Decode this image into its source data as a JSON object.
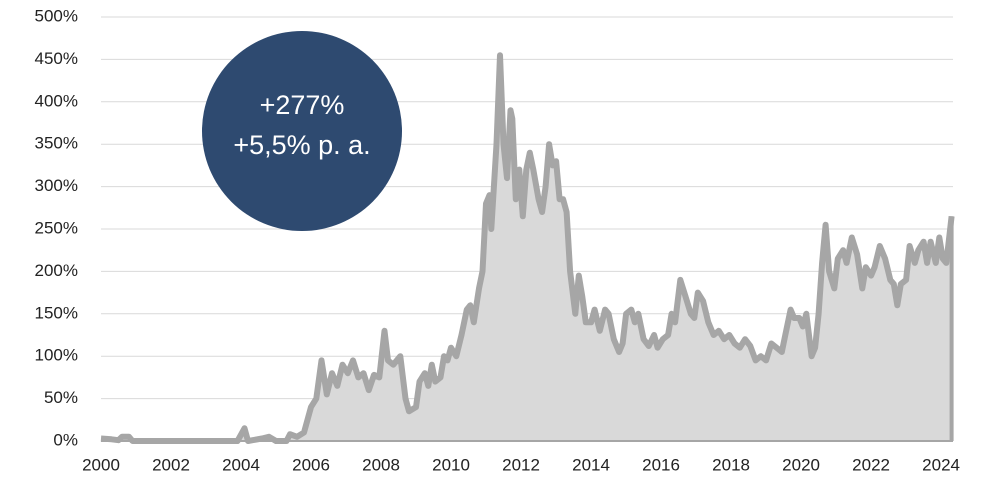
{
  "chart_data": {
    "type": "area",
    "x": [
      2000,
      2000.3,
      2000.5,
      2000.6,
      2000.8,
      2000.9,
      2001,
      2002,
      2003,
      2003.9,
      2004.1,
      2004.2,
      2004.6,
      2004.8,
      2005.0,
      2005.3,
      2005.4,
      2005.6,
      2005.8,
      2006.0,
      2006.15,
      2006.3,
      2006.45,
      2006.6,
      2006.75,
      2006.9,
      2007.05,
      2007.2,
      2007.35,
      2007.5,
      2007.65,
      2007.8,
      2007.95,
      2008.1,
      2008.2,
      2008.35,
      2008.55,
      2008.7,
      2008.8,
      2009.0,
      2009.1,
      2009.25,
      2009.35,
      2009.45,
      2009.55,
      2009.7,
      2009.8,
      2009.9,
      2010.0,
      2010.15,
      2010.3,
      2010.45,
      2010.55,
      2010.65,
      2010.8,
      2010.9,
      2011.0,
      2011.1,
      2011.15,
      2011.3,
      2011.4,
      2011.5,
      2011.6,
      2011.7,
      2011.75,
      2011.85,
      2011.95,
      2012.05,
      2012.15,
      2012.25,
      2012.35,
      2012.5,
      2012.6,
      2012.7,
      2012.8,
      2012.9,
      2013.0,
      2013.1,
      2013.2,
      2013.3,
      2013.4,
      2013.55,
      2013.65,
      2013.75,
      2013.85,
      2014.0,
      2014.1,
      2014.25,
      2014.4,
      2014.5,
      2014.65,
      2014.8,
      2014.9,
      2015.0,
      2015.15,
      2015.25,
      2015.35,
      2015.5,
      2015.65,
      2015.8,
      2015.9,
      2016.05,
      2016.2,
      2016.3,
      2016.4,
      2016.55,
      2016.7,
      2016.85,
      2016.95,
      2017.05,
      2017.2,
      2017.35,
      2017.5,
      2017.65,
      2017.8,
      2017.95,
      2018.1,
      2018.25,
      2018.4,
      2018.55,
      2018.7,
      2018.85,
      2019.0,
      2019.15,
      2019.3,
      2019.45,
      2019.55,
      2019.7,
      2019.8,
      2019.95,
      2020.05,
      2020.15,
      2020.3,
      2020.4,
      2020.5,
      2020.6,
      2020.7,
      2020.8,
      2020.95,
      2021.05,
      2021.2,
      2021.3,
      2021.45,
      2021.6,
      2021.75,
      2021.85,
      2022.0,
      2022.1,
      2022.25,
      2022.4,
      2022.55,
      2022.65,
      2022.75,
      2022.85,
      2023.0,
      2023.1,
      2023.25,
      2023.35,
      2023.5,
      2023.6,
      2023.7,
      2023.85,
      2023.95,
      2024.05,
      2024.15,
      2024.3
    ],
    "series": [
      {
        "color": "#a6a6a6",
        "fill": "#d9d9d9",
        "values": [
          3,
          2,
          1,
          5,
          5,
          0,
          0,
          0,
          0,
          0,
          15,
          0,
          3,
          5,
          0,
          0,
          8,
          5,
          10,
          40,
          50,
          95,
          55,
          80,
          65,
          90,
          80,
          95,
          75,
          80,
          60,
          78,
          75,
          130,
          95,
          90,
          100,
          50,
          35,
          40,
          70,
          80,
          65,
          90,
          70,
          75,
          100,
          95,
          110,
          100,
          125,
          155,
          160,
          140,
          180,
          200,
          280,
          290,
          250,
          350,
          455,
          350,
          310,
          390,
          380,
          285,
          320,
          265,
          320,
          340,
          320,
          285,
          270,
          300,
          350,
          325,
          330,
          285,
          285,
          270,
          200,
          150,
          195,
          170,
          140,
          140,
          155,
          130,
          155,
          150,
          120,
          105,
          115,
          150,
          155,
          140,
          150,
          120,
          112,
          125,
          110,
          120,
          125,
          150,
          140,
          190,
          170,
          150,
          145,
          175,
          165,
          140,
          125,
          130,
          120,
          125,
          115,
          110,
          120,
          112,
          95,
          100,
          95,
          115,
          110,
          105,
          125,
          155,
          145,
          145,
          135,
          150,
          100,
          110,
          150,
          210,
          255,
          200,
          180,
          215,
          225,
          210,
          240,
          220,
          180,
          205,
          195,
          205,
          230,
          215,
          190,
          185,
          160,
          185,
          190,
          230,
          210,
          225,
          235,
          210,
          235,
          210,
          240,
          215,
          210,
          265
        ]
      }
    ],
    "xlim": [
      2000,
      2024.34
    ],
    "xticks": [
      2000,
      2002,
      2004,
      2006,
      2008,
      2010,
      2012,
      2014,
      2016,
      2018,
      2020,
      2022,
      2024
    ],
    "ylim": [
      0,
      500
    ],
    "yticks": [
      {
        "value": 0,
        "label": "0%"
      },
      {
        "value": 50,
        "label": "50%"
      },
      {
        "value": 100,
        "label": "100%"
      },
      {
        "value": 150,
        "label": "150%"
      },
      {
        "value": 200,
        "label": "200%"
      },
      {
        "value": 250,
        "label": "250%"
      },
      {
        "value": 300,
        "label": "300%"
      },
      {
        "value": 350,
        "label": "350%"
      },
      {
        "value": 400,
        "label": "400%"
      },
      {
        "value": 450,
        "label": "450%"
      },
      {
        "value": 500,
        "label": "500%"
      }
    ],
    "grid": true,
    "annotations": [
      "+277%",
      "+5,5% p. a."
    ],
    "annotation_color": "#2e4a70"
  }
}
